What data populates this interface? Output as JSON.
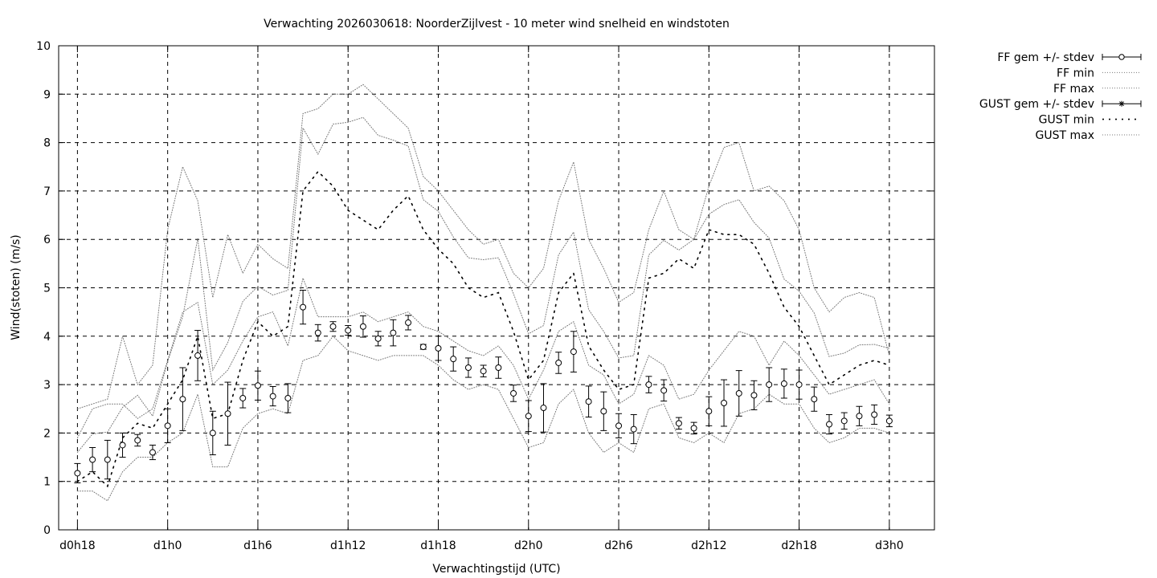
{
  "chart_data": {
    "type": "scatter",
    "title": "Verwachting 2026030618: NoorderZijlvest - 10 meter wind snelheid en windstoten",
    "xlabel": "Verwachtingstijd (UTC)",
    "ylabel": "Wind(stoten) (m/s)",
    "ylim": [
      0,
      10
    ],
    "xlim": [
      -1.25,
      57
    ],
    "grid": true,
    "legend_position": "outside-right",
    "y_ticks": [
      "0",
      "1",
      "2",
      "3",
      "4",
      "5",
      "6",
      "7",
      "8",
      "9",
      "10"
    ],
    "x_ticks": [
      {
        "x": 0,
        "label": "d0h18"
      },
      {
        "x": 6,
        "label": "d1h0"
      },
      {
        "x": 12,
        "label": "d1h6"
      },
      {
        "x": 18,
        "label": "d1h12"
      },
      {
        "x": 24,
        "label": "d1h18"
      },
      {
        "x": 30,
        "label": "d2h0"
      },
      {
        "x": 36,
        "label": "d2h6"
      },
      {
        "x": 42,
        "label": "d2h12"
      },
      {
        "x": 48,
        "label": "d2h18"
      },
      {
        "x": 54,
        "label": "d3h0"
      }
    ],
    "legend": [
      {
        "label": "FF gem +/- stdev",
        "style": "errorbar-circle"
      },
      {
        "label": "FF min",
        "style": "dotted"
      },
      {
        "label": "FF max",
        "style": "dotted"
      },
      {
        "label": "GUST gem +/- stdev",
        "style": "errorbar-star"
      },
      {
        "label": "GUST min",
        "style": "dotted-coarse"
      },
      {
        "label": "GUST max",
        "style": "dotted"
      }
    ],
    "series": [
      {
        "name": "FF gem +/- stdev",
        "x": [
          0,
          1,
          2,
          3,
          4,
          5,
          6,
          7,
          8,
          9,
          10,
          11,
          12,
          13,
          14,
          15,
          16,
          17,
          18,
          19,
          20,
          21,
          22,
          23,
          24,
          25,
          26,
          27,
          28,
          29,
          30,
          31,
          32,
          33,
          34,
          35,
          36,
          37,
          38,
          39,
          40,
          41,
          42,
          43,
          44,
          45,
          46,
          47,
          48,
          49,
          50,
          51,
          52,
          53,
          54
        ],
        "y": [
          1.17,
          1.45,
          1.45,
          1.75,
          1.85,
          1.6,
          2.15,
          2.7,
          3.6,
          2.0,
          2.4,
          2.72,
          2.98,
          2.76,
          2.72,
          4.6,
          4.07,
          4.2,
          4.12,
          4.2,
          3.95,
          4.07,
          4.28,
          3.78,
          3.75,
          3.53,
          3.35,
          3.28,
          3.35,
          2.82,
          2.35,
          2.52,
          3.45,
          3.68,
          2.65,
          2.45,
          2.15,
          2.08,
          3.0,
          2.88,
          2.2,
          2.1,
          2.45,
          2.62,
          2.82,
          2.78,
          3.0,
          3.02,
          3.0,
          2.7,
          2.18,
          2.25,
          2.35,
          2.38,
          2.25
        ],
        "err": [
          0.2,
          0.25,
          0.4,
          0.25,
          0.12,
          0.15,
          0.35,
          0.65,
          0.52,
          0.45,
          0.65,
          0.2,
          0.3,
          0.2,
          0.3,
          0.35,
          0.17,
          0.1,
          0.1,
          0.22,
          0.15,
          0.27,
          0.15,
          0.05,
          0.25,
          0.25,
          0.2,
          0.12,
          0.22,
          0.17,
          0.32,
          0.5,
          0.22,
          0.42,
          0.32,
          0.4,
          0.25,
          0.3,
          0.17,
          0.22,
          0.12,
          0.12,
          0.3,
          0.48,
          0.47,
          0.3,
          0.35,
          0.3,
          0.3,
          0.25,
          0.2,
          0.17,
          0.2,
          0.2,
          0.12
        ]
      },
      {
        "name": "FF min",
        "x": [
          0,
          1,
          2,
          3,
          4,
          5,
          6,
          7,
          8,
          9,
          10,
          11,
          12,
          13,
          14,
          15,
          16,
          17,
          18,
          19,
          20,
          21,
          22,
          23,
          24,
          25,
          26,
          27,
          28,
          29,
          30,
          31,
          32,
          33,
          34,
          35,
          36,
          37,
          38,
          39,
          40,
          41,
          42,
          43,
          44,
          45,
          46,
          47,
          48,
          49,
          50,
          51,
          52,
          53,
          54
        ],
        "y": [
          0.8,
          0.8,
          0.6,
          1.2,
          1.5,
          1.5,
          1.8,
          2.0,
          2.8,
          1.3,
          1.3,
          2.1,
          2.4,
          2.5,
          2.4,
          3.5,
          3.6,
          4.0,
          3.7,
          3.6,
          3.5,
          3.6,
          3.6,
          3.6,
          3.4,
          3.1,
          2.9,
          3.0,
          2.9,
          2.3,
          1.7,
          1.8,
          2.6,
          2.9,
          2.0,
          1.6,
          1.8,
          1.6,
          2.5,
          2.6,
          1.9,
          1.8,
          2.0,
          1.8,
          2.4,
          2.5,
          2.8,
          2.6,
          2.6,
          2.1,
          1.8,
          1.9,
          2.1,
          2.1,
          2.0
        ]
      },
      {
        "name": "FF max",
        "x": [
          0,
          1,
          2,
          3,
          4,
          5,
          6,
          7,
          8,
          9,
          10,
          11,
          12,
          13,
          14,
          15,
          16,
          17,
          18,
          19,
          20,
          21,
          22,
          23,
          24,
          25,
          26,
          27,
          28,
          29,
          30,
          31,
          32,
          33,
          34,
          35,
          36,
          37,
          38,
          39,
          40,
          41,
          42,
          43,
          44,
          45,
          46,
          47,
          48,
          49,
          50,
          51,
          52,
          53,
          54
        ],
        "y": [
          1.9,
          2.5,
          2.6,
          2.6,
          2.3,
          2.5,
          3.5,
          4.5,
          4.7,
          3.0,
          3.3,
          3.9,
          4.4,
          4.5,
          3.8,
          5.2,
          4.4,
          4.4,
          4.4,
          4.5,
          4.3,
          4.4,
          4.5,
          4.2,
          4.1,
          3.9,
          3.7,
          3.6,
          3.8,
          3.4,
          2.7,
          3.3,
          4.1,
          4.3,
          3.4,
          3.2,
          2.6,
          2.8,
          3.6,
          3.4,
          2.7,
          2.8,
          3.3,
          3.7,
          4.1,
          4.0,
          3.4,
          3.9,
          3.6,
          3.2,
          2.8,
          2.9,
          3.0,
          3.1,
          2.6
        ]
      },
      {
        "name": "GUST gem +/- stdev",
        "x": [
          0,
          1,
          2,
          3,
          4,
          5,
          6,
          7,
          8,
          9,
          10,
          11,
          12,
          13,
          14,
          15,
          16,
          17,
          18,
          19,
          20,
          21,
          22,
          23,
          24,
          25,
          26,
          27,
          28,
          29,
          30,
          31,
          32,
          33,
          34,
          35,
          36,
          37,
          38,
          39,
          40,
          41,
          42,
          43,
          44,
          45,
          46,
          47,
          48,
          49,
          50,
          51,
          52,
          53,
          54
        ],
        "y": [
          1.6,
          1.98,
          2.02,
          2.53,
          2.78,
          2.35,
          3.48,
          4.4,
          6.02,
          3.3,
          3.87,
          4.72,
          5.03,
          4.85,
          4.95,
          8.3,
          7.76,
          8.38,
          8.42,
          8.52,
          8.15,
          8.05,
          7.93,
          6.82,
          6.58,
          6.05,
          5.62,
          5.58,
          5.62,
          4.88,
          4.05,
          4.22,
          5.68,
          6.15,
          4.55,
          4.1,
          3.55,
          3.6,
          5.68,
          5.98,
          5.78,
          6.0,
          6.52,
          6.72,
          6.82,
          6.35,
          6.03,
          5.18,
          4.93,
          4.48,
          3.58,
          3.65,
          3.82,
          3.83,
          3.75
        ]
      },
      {
        "name": "GUST min",
        "x": [
          0,
          1,
          2,
          3,
          4,
          5,
          6,
          7,
          8,
          9,
          10,
          11,
          12,
          13,
          14,
          15,
          16,
          17,
          18,
          19,
          20,
          21,
          22,
          23,
          24,
          25,
          26,
          27,
          28,
          29,
          30,
          31,
          32,
          33,
          34,
          35,
          36,
          37,
          38,
          39,
          40,
          41,
          42,
          43,
          44,
          45,
          46,
          47,
          48,
          49,
          50,
          51,
          52,
          53,
          54
        ],
        "y": [
          1.0,
          1.2,
          0.9,
          1.9,
          2.2,
          2.1,
          2.6,
          3.1,
          4.0,
          2.3,
          2.4,
          3.5,
          4.3,
          4.0,
          4.2,
          7.0,
          7.4,
          7.1,
          6.6,
          6.4,
          6.2,
          6.6,
          6.9,
          6.2,
          5.8,
          5.5,
          5.0,
          4.8,
          4.9,
          4.1,
          3.1,
          3.5,
          4.9,
          5.3,
          3.8,
          3.3,
          2.9,
          3.0,
          5.2,
          5.3,
          5.6,
          5.4,
          6.2,
          6.1,
          6.1,
          5.9,
          5.3,
          4.6,
          4.2,
          3.6,
          3.0,
          3.2,
          3.4,
          3.5,
          3.4
        ]
      },
      {
        "name": "GUST max",
        "x": [
          0,
          1,
          2,
          3,
          4,
          5,
          6,
          7,
          8,
          9,
          10,
          11,
          12,
          13,
          14,
          15,
          16,
          17,
          18,
          19,
          20,
          21,
          22,
          23,
          24,
          25,
          26,
          27,
          28,
          29,
          30,
          31,
          32,
          33,
          34,
          35,
          36,
          37,
          38,
          39,
          40,
          41,
          42,
          43,
          44,
          45,
          46,
          47,
          48,
          49,
          50,
          51,
          52,
          53,
          54
        ],
        "y": [
          2.5,
          2.6,
          2.7,
          4.0,
          3.0,
          3.4,
          6.2,
          7.5,
          6.8,
          4.8,
          6.1,
          5.3,
          5.9,
          5.6,
          5.4,
          8.6,
          8.7,
          9.0,
          9.0,
          9.2,
          8.9,
          8.6,
          8.3,
          7.3,
          7.0,
          6.6,
          6.2,
          5.9,
          6.0,
          5.3,
          5.0,
          5.4,
          6.8,
          7.6,
          6.0,
          5.4,
          4.7,
          4.9,
          6.2,
          7.0,
          6.2,
          6.0,
          7.1,
          7.9,
          8.0,
          7.0,
          7.1,
          6.8,
          6.2,
          5.0,
          4.5,
          4.8,
          4.9,
          4.8,
          3.6
        ]
      }
    ]
  }
}
